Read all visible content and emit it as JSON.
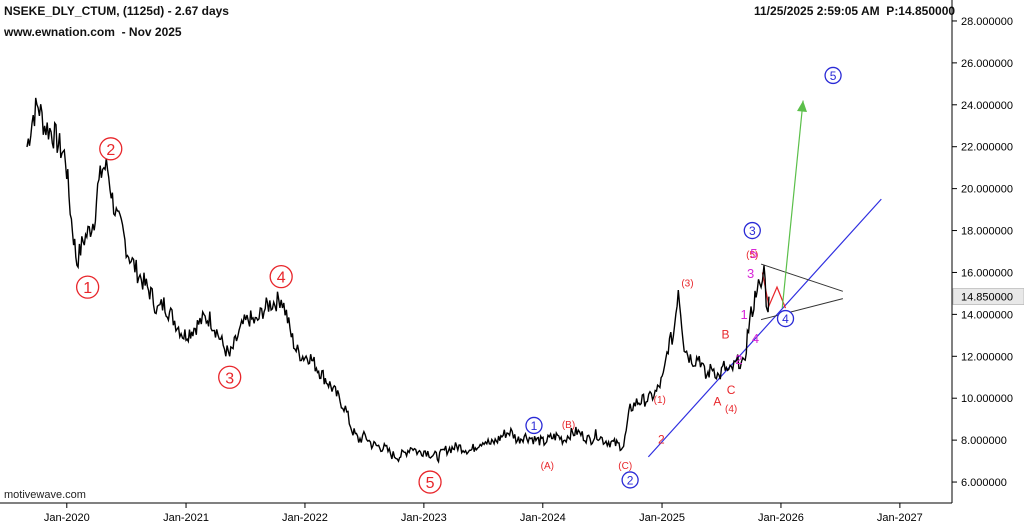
{
  "header": {
    "symbol_line": "NSEKE_DLY_CTUM, (1125d) - 2.67 days",
    "source_line": "www.ewnation.com  - Nov 2025",
    "timestamp_line": "11/25/2025 2:59:05 AM  P:14.850000",
    "footer": "motivewave.com"
  },
  "colors": {
    "price": "#000000",
    "wave_red": "#e8262b",
    "wave_blue": "#2a2ad6",
    "wave_magenta": "#d826d8",
    "trendline": "#2f2fe0",
    "target_arrow": "#5bbf4a",
    "triangle": "#333333",
    "zigzag": "#e8262b",
    "price_tag_bg": "#e8e8e8"
  },
  "chart_data": {
    "type": "line",
    "title": "NSEKE_DLY_CTUM, (1125d) - 2.67 days",
    "xlabel": "",
    "ylabel": "",
    "xlim": [
      "2019-06-10",
      "2027-06-10"
    ],
    "ylim": [
      5.0,
      29.0
    ],
    "grid": false,
    "yaxis_position": "right",
    "x_ticks": [
      "Jan-2020",
      "Jan-2021",
      "Jan-2022",
      "Jan-2023",
      "Jan-2024",
      "Jan-2025",
      "Jan-2026",
      "Jan-2027"
    ],
    "y_ticks": [
      "6.000000",
      "8.000000",
      "10.000000",
      "12.000000",
      "14.000000",
      "16.000000",
      "18.000000",
      "20.000000",
      "22.000000",
      "24.000000",
      "26.000000",
      "28.000000"
    ],
    "y_tick_values": [
      6,
      8,
      10,
      12,
      14,
      16,
      18,
      20,
      22,
      24,
      26,
      28
    ],
    "last_price": 14.85,
    "last_price_label": "14.850000",
    "series": [
      {
        "x": [
          "2019-09-01",
          "2019-09-20",
          "2019-10-05",
          "2019-10-25",
          "2019-11-10",
          "2019-11-25",
          "2019-12-10",
          "2019-12-28",
          "2020-01-15",
          "2020-02-01",
          "2020-02-20",
          "2020-03-10",
          "2020-03-25",
          "2020-04-05",
          "2020-04-20",
          "2020-05-05",
          "2020-05-20",
          "2020-06-05",
          "2020-06-20",
          "2020-07-05",
          "2020-07-20",
          "2020-08-05",
          "2020-08-25",
          "2020-09-15",
          "2020-10-05",
          "2020-10-25",
          "2020-11-15",
          "2020-12-05",
          "2020-12-25",
          "2021-01-15",
          "2021-02-05",
          "2021-02-25",
          "2021-03-15",
          "2021-04-05",
          "2021-04-25",
          "2021-05-15",
          "2021-06-05",
          "2021-06-25",
          "2021-07-15",
          "2021-08-05",
          "2021-08-25",
          "2021-09-15",
          "2021-10-05",
          "2021-10-20",
          "2021-11-05",
          "2021-11-20",
          "2021-12-05",
          "2021-12-25",
          "2022-01-15",
          "2022-02-05",
          "2022-03-01",
          "2022-03-25",
          "2022-04-15",
          "2022-05-05",
          "2022-05-25",
          "2022-06-15",
          "2022-07-05",
          "2022-07-25",
          "2022-08-15",
          "2022-09-05",
          "2022-09-25",
          "2022-10-15",
          "2022-11-05",
          "2022-11-25",
          "2022-12-15",
          "2023-01-05",
          "2023-01-25",
          "2023-02-15",
          "2023-03-05",
          "2023-03-25",
          "2023-04-15",
          "2023-05-05",
          "2023-05-25",
          "2023-06-15",
          "2023-07-05",
          "2023-07-25",
          "2023-08-15",
          "2023-09-05",
          "2023-09-25",
          "2023-10-15",
          "2023-11-05",
          "2023-11-25",
          "2023-12-15",
          "2024-01-05",
          "2024-01-25",
          "2024-02-15",
          "2024-03-05",
          "2024-03-25",
          "2024-04-15",
          "2024-05-05",
          "2024-05-25",
          "2024-06-15",
          "2024-07-05",
          "2024-07-25",
          "2024-08-15",
          "2024-09-05",
          "2024-09-25",
          "2024-10-15",
          "2024-11-05",
          "2024-11-25",
          "2024-12-15",
          "2025-01-05",
          "2025-01-20",
          "2025-02-05",
          "2025-02-20",
          "2025-03-10",
          "2025-03-25",
          "2025-04-10",
          "2025-04-25",
          "2025-05-15",
          "2025-06-05",
          "2025-06-25",
          "2025-07-10",
          "2025-07-25",
          "2025-08-10",
          "2025-08-25",
          "2025-09-10",
          "2025-09-20",
          "2025-10-01",
          "2025-10-10",
          "2025-10-20",
          "2025-11-01",
          "2025-11-10",
          "2025-11-20",
          "2025-11-25"
        ],
        "y": [
          22.0,
          23.5,
          24.0,
          23.0,
          22.8,
          22.5,
          22.0,
          21.5,
          18.5,
          16.5,
          17.5,
          18.0,
          18.5,
          20.0,
          21.0,
          21.0,
          19.5,
          18.5,
          18.0,
          17.0,
          16.5,
          16.0,
          15.5,
          15.0,
          14.2,
          14.5,
          14.0,
          13.5,
          13.0,
          13.2,
          13.5,
          13.8,
          13.8,
          13.2,
          12.5,
          12.0,
          12.8,
          13.5,
          13.8,
          13.6,
          14.2,
          14.5,
          14.6,
          14.8,
          14.0,
          13.0,
          12.3,
          12.0,
          12.0,
          11.5,
          11.0,
          10.5,
          10.0,
          9.5,
          8.5,
          8.0,
          8.2,
          7.8,
          7.7,
          7.6,
          7.3,
          7.2,
          7.4,
          7.7,
          7.4,
          7.5,
          7.3,
          7.2,
          7.5,
          7.6,
          7.7,
          7.6,
          7.5,
          7.8,
          8.0,
          7.8,
          8.0,
          8.3,
          8.4,
          8.0,
          8.2,
          8.1,
          8.0,
          7.9,
          8.1,
          8.2,
          8.0,
          8.3,
          8.4,
          8.2,
          8.0,
          8.3,
          8.0,
          7.9,
          7.8,
          7.7,
          9.5,
          9.8,
          9.9,
          10.0,
          10.3,
          11.0,
          12.5,
          13.0,
          15.3,
          12.5,
          12.0,
          11.8,
          12.0,
          11.0,
          11.5,
          11.0,
          11.5,
          11.2,
          11.5,
          11.8,
          11.5,
          13.0,
          14.0,
          14.5,
          15.5,
          15.0,
          16.3,
          14.0,
          14.85
        ]
      }
    ],
    "projections": {
      "trendline": {
        "x": [
          "2024-11-20",
          "2026-11-05"
        ],
        "y": [
          7.2,
          19.5
        ]
      },
      "target_arrow": {
        "x": [
          "2026-01-05",
          "2026-03-10"
        ],
        "y": [
          14.3,
          24.2
        ]
      },
      "triangle_upper": {
        "x": [
          "2025-11-01",
          "2026-07-10"
        ],
        "y": [
          16.4,
          15.1
        ]
      },
      "triangle_lower": {
        "x": [
          "2025-11-01",
          "2026-07-10"
        ],
        "y": [
          13.75,
          14.75
        ]
      },
      "zigzag": {
        "x": [
          "2025-11-05",
          "2025-11-25",
          "2025-12-20",
          "2026-01-15"
        ],
        "y": [
          16.0,
          14.4,
          15.3,
          14.3
        ]
      }
    },
    "annotations": [
      {
        "text": "1",
        "x": "2020-03-05",
        "y": 15.3,
        "color": "red",
        "circle": true,
        "size": "large"
      },
      {
        "text": "2",
        "x": "2020-05-15",
        "y": 21.9,
        "color": "red",
        "circle": true,
        "size": "large"
      },
      {
        "text": "3",
        "x": "2021-05-15",
        "y": 11.0,
        "color": "red",
        "circle": true,
        "size": "large"
      },
      {
        "text": "4",
        "x": "2021-10-20",
        "y": 15.8,
        "color": "red",
        "circle": true,
        "size": "large"
      },
      {
        "text": "5",
        "x": "2023-01-20",
        "y": 6.0,
        "color": "red",
        "circle": true,
        "size": "large"
      },
      {
        "text": "1",
        "x": "2023-12-05",
        "y": 8.7,
        "color": "blue",
        "circle": true,
        "size": "small"
      },
      {
        "text": "2",
        "x": "2024-09-25",
        "y": 6.1,
        "color": "blue",
        "circle": true,
        "size": "small"
      },
      {
        "text": "3",
        "x": "2025-10-05",
        "y": 18.0,
        "color": "blue",
        "circle": true,
        "size": "small"
      },
      {
        "text": "4",
        "x": "2026-01-15",
        "y": 13.8,
        "color": "blue",
        "circle": true,
        "size": "small"
      },
      {
        "text": "5",
        "x": "2026-06-10",
        "y": 25.4,
        "color": "blue",
        "circle": true,
        "size": "small"
      },
      {
        "text": "(A)",
        "x": "2024-01-15",
        "y": 6.8,
        "color": "red",
        "circle": false
      },
      {
        "text": "(B)",
        "x": "2024-03-20",
        "y": 8.75,
        "color": "red",
        "circle": false
      },
      {
        "text": "(C)",
        "x": "2024-09-10",
        "y": 6.8,
        "color": "red",
        "circle": false
      },
      {
        "text": "(1)",
        "x": "2024-12-25",
        "y": 9.95,
        "color": "red",
        "circle": false
      },
      {
        "text": "2",
        "x": "2024-12-30",
        "y": 8.05,
        "color": "red",
        "circle": false
      },
      {
        "text": "(3)",
        "x": "2025-03-20",
        "y": 15.5,
        "color": "red",
        "circle": false
      },
      {
        "text": "(4)",
        "x": "2025-08-01",
        "y": 9.5,
        "color": "red",
        "circle": false
      },
      {
        "text": "(5)",
        "x": "2025-10-05",
        "y": 16.85,
        "color": "red",
        "circle": false
      },
      {
        "text": "A",
        "x": "2025-06-20",
        "y": 9.85,
        "color": "red",
        "circle": false
      },
      {
        "text": "B",
        "x": "2025-07-15",
        "y": 13.05,
        "color": "red",
        "circle": false
      },
      {
        "text": "C",
        "x": "2025-08-01",
        "y": 10.4,
        "color": "red",
        "circle": false
      },
      {
        "text": "1",
        "x": "2025-09-10",
        "y": 14.0,
        "color": "magenta",
        "circle": false
      },
      {
        "text": "2",
        "x": "2025-08-25",
        "y": 11.85,
        "color": "magenta",
        "circle": false
      },
      {
        "text": "3",
        "x": "2025-09-30",
        "y": 15.95,
        "color": "magenta",
        "circle": false
      },
      {
        "text": "4",
        "x": "2025-10-15",
        "y": 12.85,
        "color": "magenta",
        "circle": false
      },
      {
        "text": "5",
        "x": "2025-10-10",
        "y": 16.9,
        "color": "magenta",
        "circle": false
      }
    ]
  }
}
